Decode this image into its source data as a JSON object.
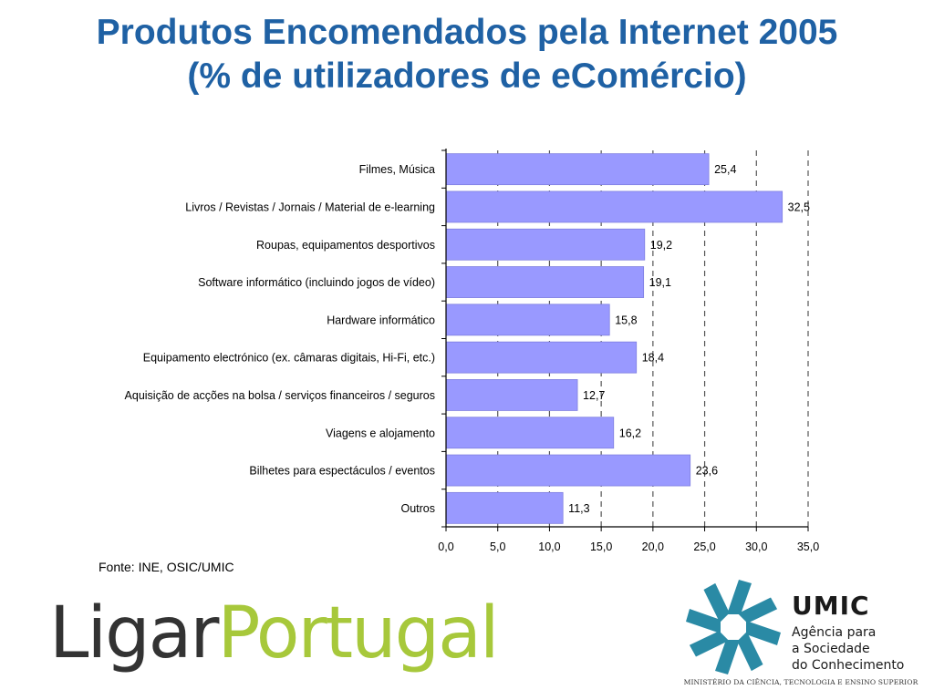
{
  "title": {
    "line1": "Produtos Encomendados pela Internet 2005",
    "line2": "(% de utilizadores de eComércio)"
  },
  "source": "Fonte: INE, OSIC/UMIC",
  "logos": {
    "ligar_part1": "Ligar",
    "ligar_part2": "Portugal",
    "umic_name": "UMIC",
    "umic_line1": "Agência para",
    "umic_line2": "a Sociedade",
    "umic_line3": "do Conhecimento",
    "umic_ministry": "MINISTÉRIO DA CIÊNCIA, TECNOLOGIA E ENSINO SUPERIOR"
  },
  "colors": {
    "title": "#1f61a4",
    "bar": "#9999ff",
    "bar_edge": "#7f7fe0",
    "ligar_dark": "#333333",
    "ligar_green": "#a7c83b",
    "umic_teal": "#2a8aa5"
  },
  "chart_data": {
    "type": "bar",
    "orientation": "horizontal",
    "categories": [
      "Filmes, Música",
      "Livros / Revistas / Jornais / Material de e-learning",
      "Roupas, equipamentos desportivos",
      "Software informático (incluindo jogos de vídeo)",
      "Hardware informático",
      "Equipamento electrónico (ex. câmaras digitais, Hi-Fi, etc.)",
      "Aquisição de acções na bolsa / serviços financeiros / seguros",
      "Viagens e alojamento",
      "Bilhetes para espectáculos / eventos",
      "Outros"
    ],
    "values": [
      25.4,
      32.5,
      19.2,
      19.1,
      15.8,
      18.4,
      12.7,
      16.2,
      23.6,
      11.3
    ],
    "value_labels": [
      "25,4",
      "32,5",
      "19,2",
      "19,1",
      "15,8",
      "18,4",
      "12,7",
      "16,2",
      "23,6",
      "11,3"
    ],
    "xlim": [
      0,
      35
    ],
    "xticks": [
      0,
      5,
      10,
      15,
      20,
      25,
      30,
      35
    ],
    "xtick_labels": [
      "0,0",
      "5,0",
      "10,0",
      "15,0",
      "20,0",
      "25,0",
      "30,0",
      "35,0"
    ],
    "grid": "vertical dashed",
    "title": "",
    "xlabel": "",
    "ylabel": ""
  }
}
